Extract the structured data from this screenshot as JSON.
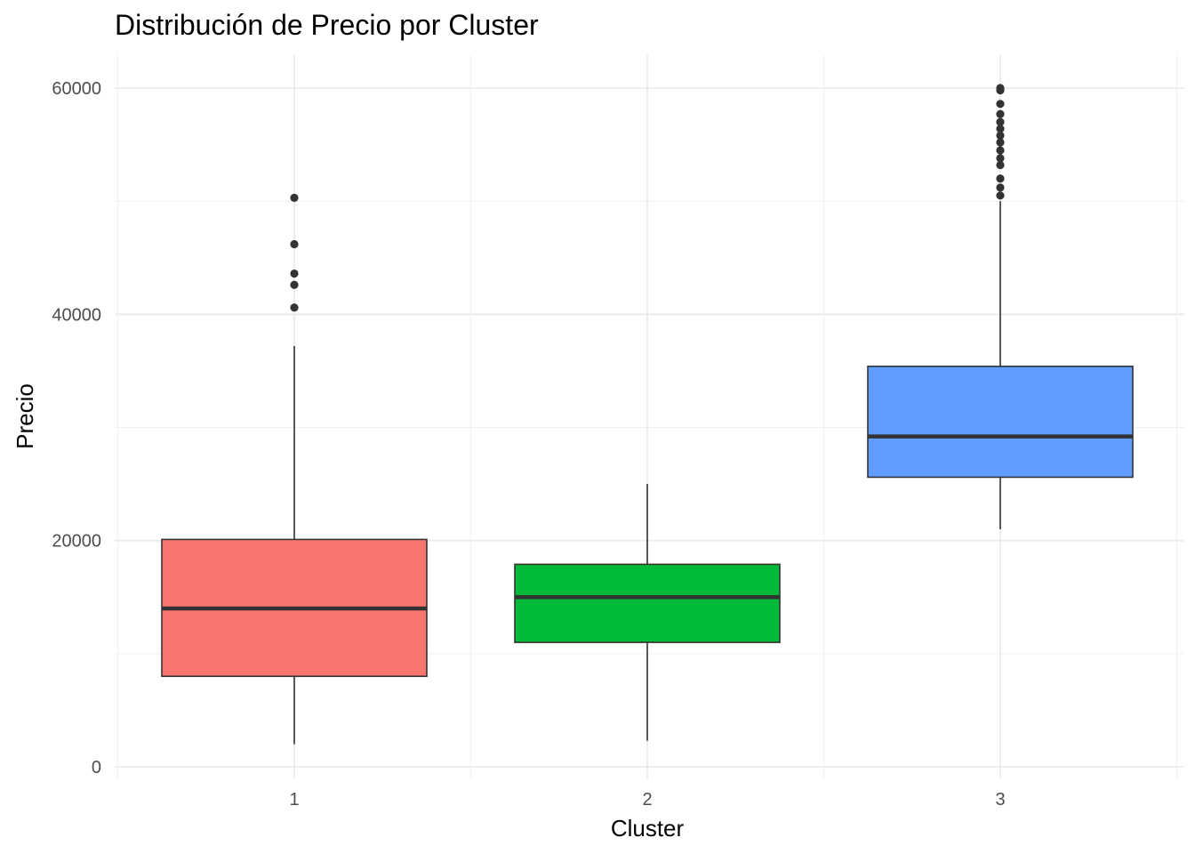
{
  "chart_data": {
    "type": "boxplot",
    "title": "Distribución de Precio por Cluster",
    "xlabel": "Cluster",
    "ylabel": "Precio",
    "ylim": [
      0,
      63000
    ],
    "yticks": [
      0,
      20000,
      40000,
      60000
    ],
    "yticks_labels": [
      "0",
      "20000",
      "40000",
      "60000"
    ],
    "grid": true,
    "categories": [
      "1",
      "2",
      "3"
    ],
    "boxes": [
      {
        "category": "1",
        "color": "#F8766D",
        "whisker_low": 2000,
        "q1": 8000,
        "median": 14000,
        "q3": 20100,
        "whisker_high": 37200,
        "outliers": [
          40600,
          42600,
          43600,
          46200,
          50300
        ]
      },
      {
        "category": "2",
        "color": "#00BA38",
        "whisker_low": 2300,
        "q1": 11000,
        "median": 15000,
        "q3": 17900,
        "whisker_high": 25000,
        "outliers": []
      },
      {
        "category": "3",
        "color": "#619CFF",
        "whisker_low": 21000,
        "q1": 25600,
        "median": 29200,
        "q3": 35400,
        "whisker_high": 50000,
        "outliers": [
          50500,
          51200,
          52000,
          53200,
          53800,
          54500,
          55200,
          55800,
          56400,
          57000,
          57700,
          58600,
          59800,
          60000
        ]
      }
    ]
  }
}
